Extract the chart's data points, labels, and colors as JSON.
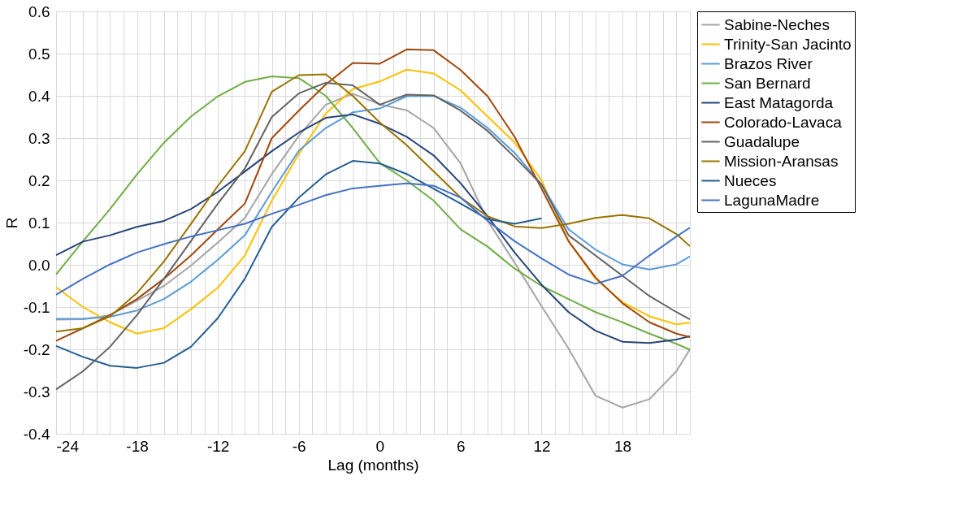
{
  "chart_data": {
    "type": "line",
    "xlabel": "Lag (months)",
    "ylabel": "R",
    "x": [
      -24,
      -22,
      -20,
      -18,
      -16,
      -14,
      -12,
      -10,
      -8,
      -6,
      -4,
      -2,
      0,
      2,
      4,
      6,
      8,
      10,
      12,
      14,
      16,
      18,
      20,
      22,
      23
    ],
    "xlim": [
      -24,
      23
    ],
    "xticks": [
      -24,
      {
        "value": -23,
        "label": null
      },
      {
        "value": -22,
        "label": null
      },
      {
        "value": -21,
        "label": null
      },
      {
        "value": -20,
        "label": null
      },
      {
        "value": -19,
        "label": null
      },
      -18,
      {
        "value": -17,
        "label": null
      },
      {
        "value": -16,
        "label": null
      },
      {
        "value": -15,
        "label": null
      },
      {
        "value": -14,
        "label": null
      },
      {
        "value": -13,
        "label": null
      },
      -12,
      {
        "value": -11,
        "label": null
      },
      {
        "value": -10,
        "label": null
      },
      {
        "value": -9,
        "label": null
      },
      {
        "value": -8,
        "label": null
      },
      {
        "value": -7,
        "label": null
      },
      -6,
      {
        "value": -5,
        "label": null
      },
      {
        "value": -4,
        "label": null
      },
      {
        "value": -3,
        "label": null
      },
      {
        "value": -2,
        "label": null
      },
      {
        "value": -1,
        "label": null
      },
      0,
      {
        "value": 1,
        "label": null
      },
      {
        "value": 2,
        "label": null
      },
      {
        "value": 3,
        "label": null
      },
      {
        "value": 4,
        "label": null
      },
      {
        "value": 5,
        "label": null
      },
      6,
      {
        "value": 7,
        "label": null
      },
      {
        "value": 8,
        "label": null
      },
      {
        "value": 9,
        "label": null
      },
      {
        "value": 10,
        "label": null
      },
      {
        "value": 11,
        "label": null
      },
      12,
      {
        "value": 13,
        "label": null
      },
      {
        "value": 14,
        "label": null
      },
      {
        "value": 15,
        "label": null
      },
      {
        "value": 16,
        "label": null
      },
      {
        "value": 17,
        "label": null
      },
      18,
      {
        "value": 19,
        "label": null
      },
      {
        "value": 20,
        "label": null
      },
      {
        "value": 21,
        "label": null
      },
      {
        "value": 22,
        "label": null
      },
      {
        "value": 23,
        "label": null
      }
    ],
    "ylim": [
      -0.4,
      0.6
    ],
    "yticks": [
      {
        "value": -0.4,
        "label": "-0.4"
      },
      {
        "value": -0.3,
        "label": "-0.3"
      },
      {
        "value": -0.2,
        "label": "-0.2"
      },
      {
        "value": -0.1,
        "label": "-0.1"
      },
      {
        "value": 0,
        "label": "0.0"
      },
      {
        "value": 0.1,
        "label": "0.1"
      },
      {
        "value": 0.2,
        "label": "0.2"
      },
      {
        "value": 0.3,
        "label": "0.3"
      },
      {
        "value": 0.4,
        "label": "0.4"
      },
      {
        "value": 0.5,
        "label": "0.5"
      },
      {
        "value": 0.6,
        "label": "0.6"
      }
    ],
    "grid": true,
    "legend": "top right",
    "marker": "none",
    "line_style": "solid",
    "series": [
      {
        "name": "Sabine-Neches",
        "color": "#a5a5a5",
        "values": [
          -0.13,
          -0.129,
          -0.119,
          -0.085,
          -0.05,
          -0.002,
          0.053,
          0.111,
          0.215,
          0.305,
          0.379,
          0.405,
          0.38,
          0.366,
          0.324,
          0.24,
          0.105,
          0.005,
          -0.098,
          -0.198,
          -0.31,
          -0.338,
          -0.318,
          -0.252,
          -0.2
        ]
      },
      {
        "name": "Trinity-San Jacinto",
        "color": "#ffc000",
        "values": [
          -0.053,
          -0.1,
          -0.136,
          -0.163,
          -0.15,
          -0.105,
          -0.054,
          0.022,
          0.152,
          0.262,
          0.358,
          0.416,
          0.434,
          0.462,
          0.453,
          0.413,
          0.351,
          0.29,
          0.2,
          0.056,
          -0.033,
          -0.088,
          -0.122,
          -0.141,
          -0.137
        ]
      },
      {
        "name": "Brazos River",
        "color": "#5b9bd5",
        "values": [
          -0.128,
          -0.128,
          -0.123,
          -0.108,
          -0.081,
          -0.04,
          0.012,
          0.07,
          0.173,
          0.27,
          0.324,
          0.361,
          0.37,
          0.399,
          0.4,
          0.372,
          0.324,
          0.265,
          0.19,
          0.084,
          0.036,
          0.001,
          -0.011,
          0.001,
          0.02
        ]
      },
      {
        "name": "San Bernard",
        "color": "#70ad47",
        "values": [
          -0.023,
          0.056,
          0.132,
          0.214,
          0.289,
          0.351,
          0.399,
          0.433,
          0.446,
          0.442,
          0.4,
          0.324,
          0.241,
          0.2,
          0.152,
          0.084,
          0.043,
          -0.009,
          -0.05,
          -0.081,
          -0.112,
          -0.136,
          -0.163,
          -0.187,
          -0.201
        ]
      },
      {
        "name": "East Matagorda",
        "color": "#264478",
        "values": [
          0.023,
          0.055,
          0.07,
          0.09,
          0.104,
          0.132,
          0.173,
          0.221,
          0.269,
          0.313,
          0.348,
          0.356,
          0.334,
          0.303,
          0.259,
          0.193,
          0.115,
          0.029,
          -0.047,
          -0.112,
          -0.156,
          -0.182,
          -0.185,
          -0.177,
          -0.169
        ]
      },
      {
        "name": "Colorado-Lavaca",
        "color": "#9e480e",
        "values": [
          -0.18,
          -0.15,
          -0.119,
          -0.081,
          -0.033,
          0.022,
          0.084,
          0.145,
          0.3,
          0.365,
          0.427,
          0.478,
          0.476,
          0.51,
          0.508,
          0.461,
          0.399,
          0.303,
          0.18,
          0.056,
          -0.03,
          -0.091,
          -0.136,
          -0.163,
          -0.171
        ]
      },
      {
        "name": "Guadalupe",
        "color": "#636363",
        "values": [
          -0.295,
          -0.252,
          -0.194,
          -0.119,
          -0.033,
          0.056,
          0.145,
          0.228,
          0.35,
          0.406,
          0.431,
          0.425,
          0.379,
          0.403,
          0.401,
          0.365,
          0.317,
          0.255,
          0.19,
          0.07,
          0.022,
          -0.026,
          -0.074,
          -0.112,
          -0.129
        ]
      },
      {
        "name": "Mission-Aransas",
        "color": "#997300",
        "values": [
          -0.158,
          -0.15,
          -0.122,
          -0.067,
          0.008,
          0.097,
          0.187,
          0.269,
          0.41,
          0.449,
          0.451,
          0.4,
          0.337,
          0.283,
          0.221,
          0.159,
          0.115,
          0.091,
          0.087,
          0.097,
          0.111,
          0.118,
          0.11,
          0.073,
          0.044
        ]
      },
      {
        "name": "Nueces",
        "color": "#255e91",
        "values": [
          -0.192,
          -0.218,
          -0.239,
          -0.244,
          -0.232,
          -0.194,
          -0.126,
          -0.033,
          0.09,
          0.159,
          0.214,
          0.246,
          0.24,
          0.215,
          0.18,
          0.145,
          0.108,
          0.097,
          0.11,
          null,
          null,
          null,
          null,
          null,
          null
        ]
      },
      {
        "name": "LagunaMadre",
        "color": "#4472c4",
        "values": [
          -0.071,
          -0.033,
          0.001,
          0.029,
          0.049,
          0.067,
          0.082,
          0.097,
          0.121,
          0.142,
          0.165,
          0.181,
          0.187,
          0.193,
          0.187,
          0.159,
          0.104,
          0.056,
          0.015,
          -0.023,
          -0.045,
          -0.026,
          0.022,
          0.067,
          0.088
        ]
      }
    ]
  }
}
